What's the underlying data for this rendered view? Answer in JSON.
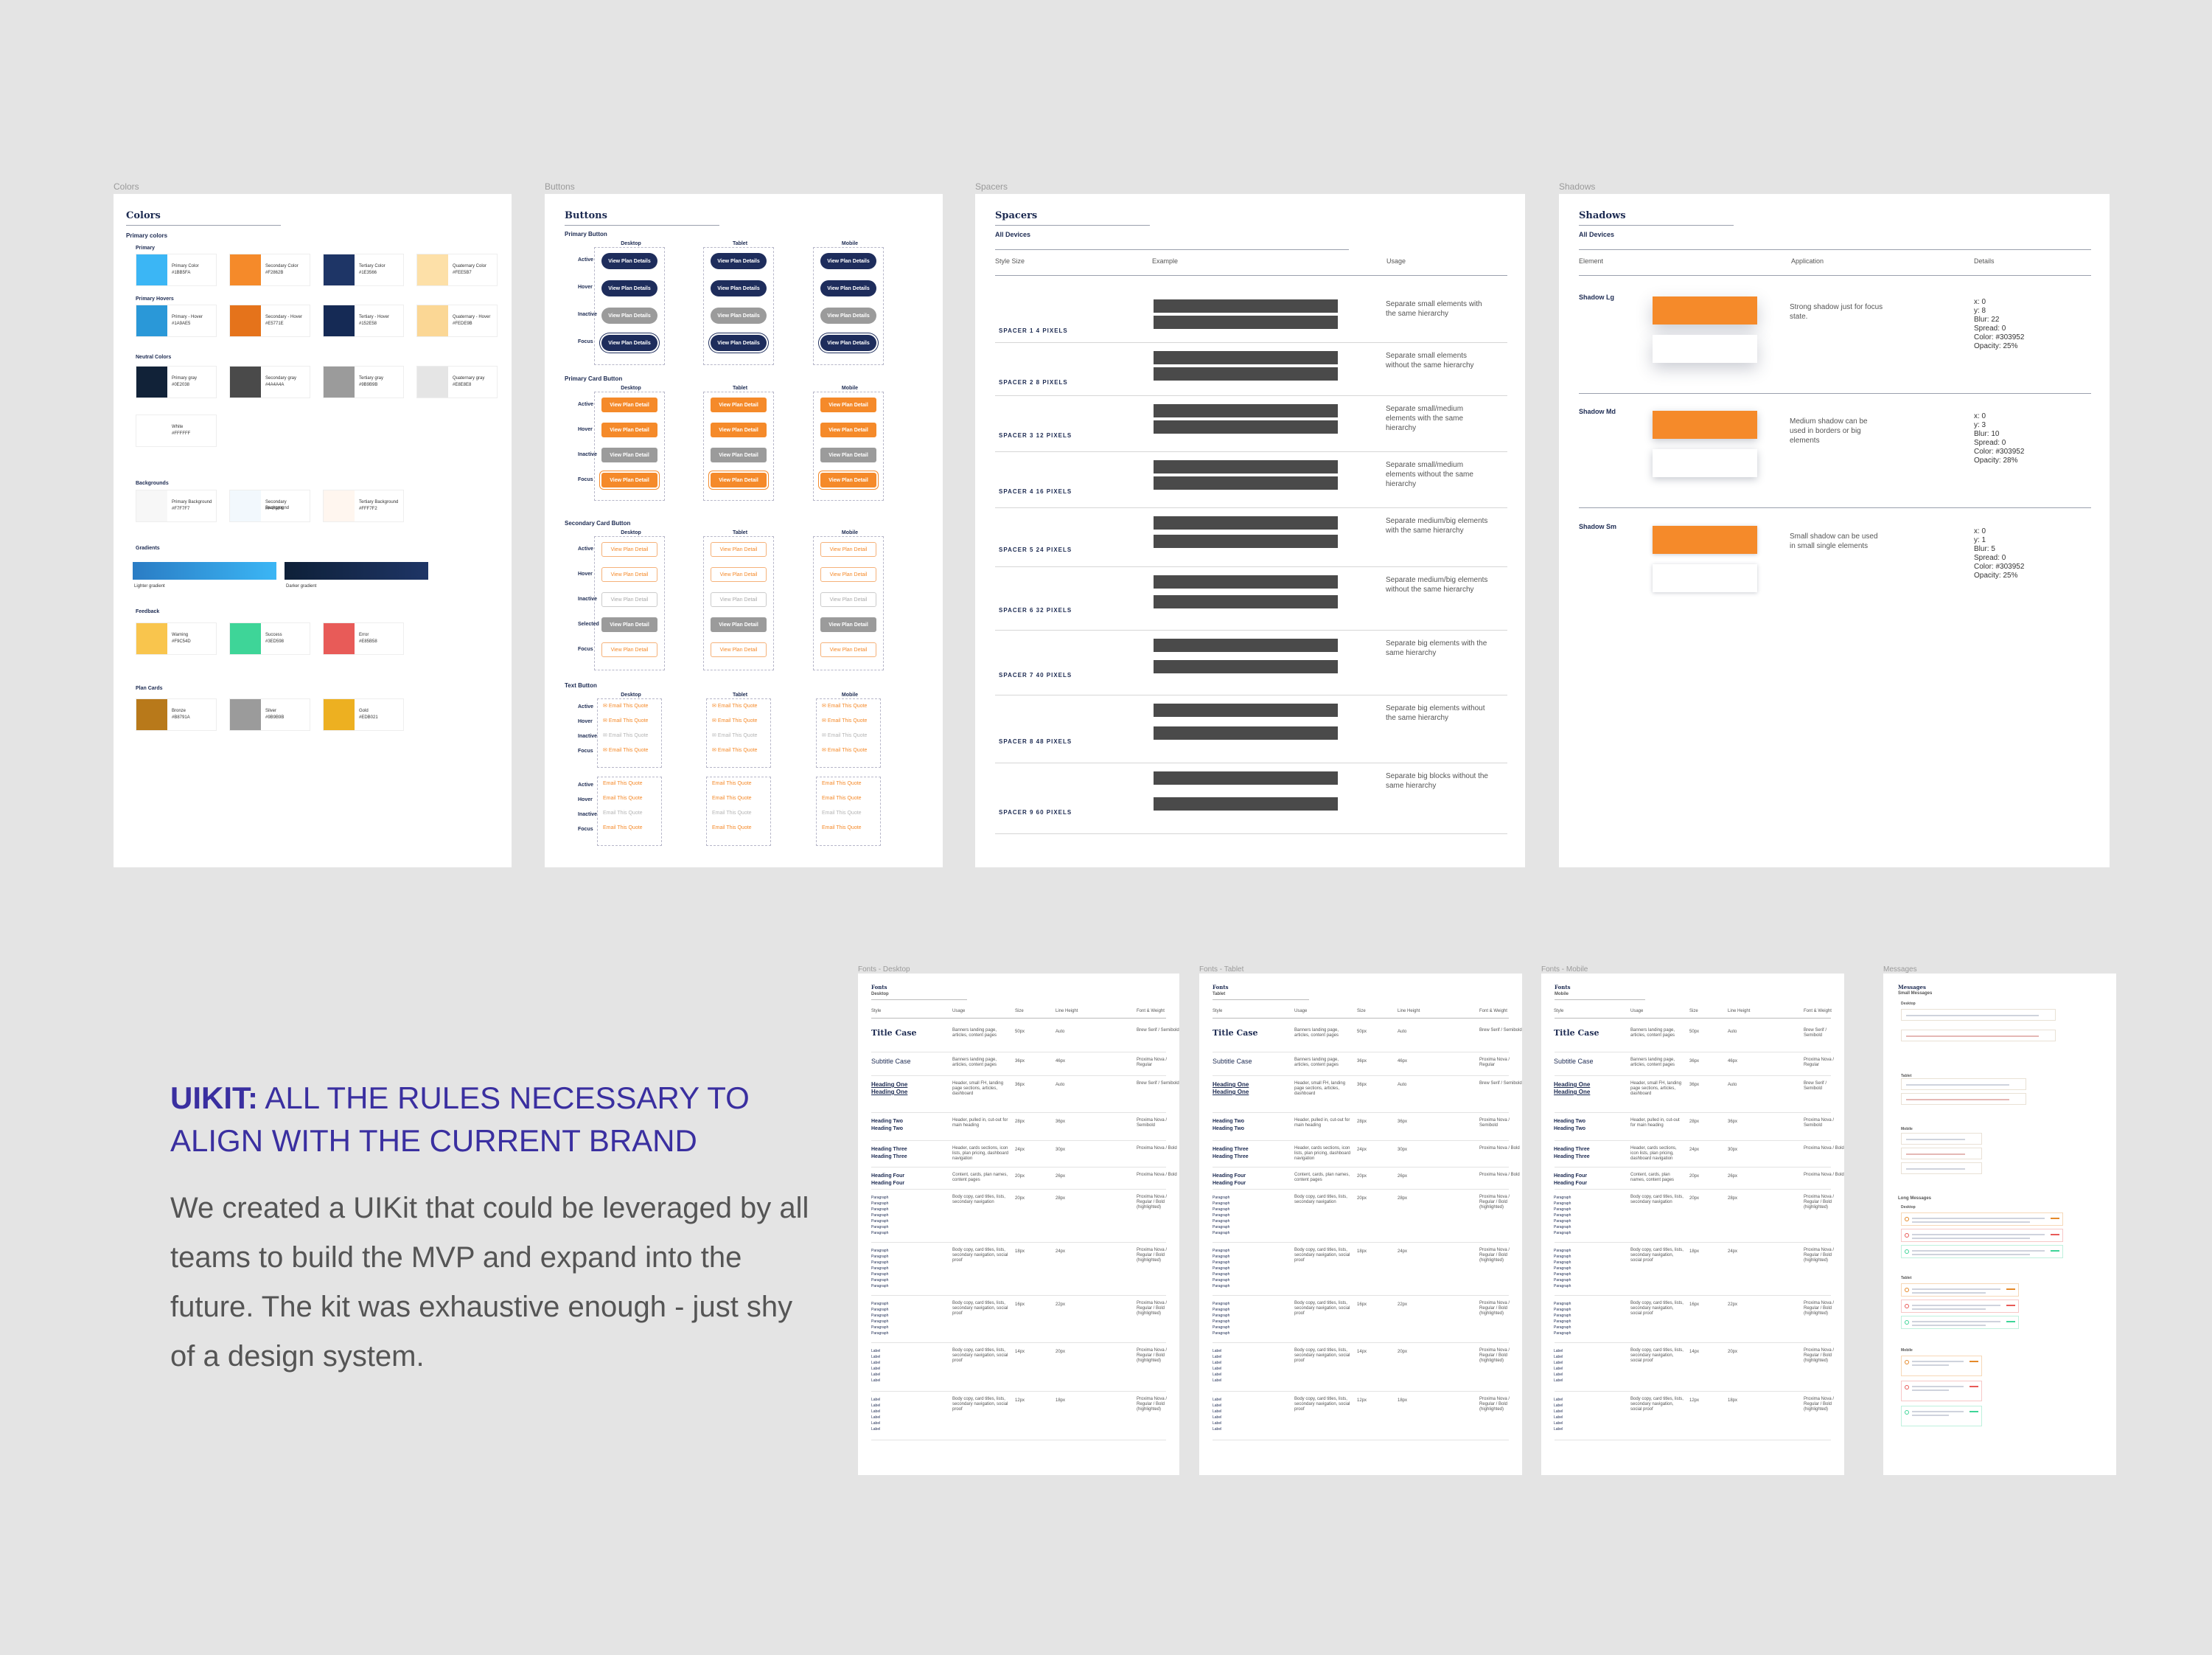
{
  "frames": {
    "colors": {
      "label": "Colors",
      "title": "Colors",
      "primary_colors_heading": "Primary colors",
      "primary_heading": "Primary",
      "primary_hovers_heading": "Primary Hovers",
      "neutral_heading": "Neutral Colors",
      "backgrounds_heading": "Backgrounds",
      "gradients_heading": "Gradients",
      "feedback_heading": "Feedback",
      "plan_cards_heading": "Plan Cards",
      "primary": [
        {
          "name": "Primary Color",
          "hex": "#1BB5FA",
          "color": "#3bb6f5"
        },
        {
          "name": "Secondary Color",
          "hex": "#F2862B",
          "color": "#f58a2a"
        },
        {
          "name": "Tertiary Color",
          "hex": "#1E3566",
          "color": "#1e3566"
        },
        {
          "name": "Quaternary Color",
          "hex": "#FEE5B7",
          "color": "#fde0a8"
        }
      ],
      "primary_hovers": [
        {
          "name": "Primary - Hover",
          "hex": "#1A9AE5",
          "color": "#2a98d8"
        },
        {
          "name": "Secondary - Hover",
          "hex": "#E5771E",
          "color": "#e5731b"
        },
        {
          "name": "Tertiary - Hover",
          "hex": "#152E58",
          "color": "#152a55"
        },
        {
          "name": "Quaternary - Hover",
          "hex": "#FEDE9B",
          "color": "#fbd795"
        }
      ],
      "neutral": [
        {
          "name": "Primary gray",
          "hex": "#0E2038",
          "color": "#112238"
        },
        {
          "name": "Secondary gray",
          "hex": "#4A4A4A",
          "color": "#4a4a4a"
        },
        {
          "name": "Tertiary gray",
          "hex": "#9B9B9B",
          "color": "#9b9b9b"
        },
        {
          "name": "Quaternary gray",
          "hex": "#E8E8E8",
          "color": "#e5e5e5"
        },
        {
          "name": "White",
          "hex": "#FFFFFF",
          "color": "#ffffff"
        }
      ],
      "backgrounds": [
        {
          "name": "Primary Background",
          "hex": "#F7F7F7",
          "color": "#f7f7f7"
        },
        {
          "name": "Secondary Background",
          "hex": "#F4FAFE",
          "color": "#f2f8fd"
        },
        {
          "name": "Tertiary Background",
          "hex": "#FFF7F2",
          "color": "#fff6ef"
        }
      ],
      "gradients": [
        {
          "name": "Lighter gradient",
          "from": "#2a7cc4",
          "to": "#3bb6f5"
        },
        {
          "name": "Darker gradient",
          "from": "#0e2038",
          "to": "#1e3566"
        }
      ],
      "feedback": [
        {
          "name": "Warning",
          "hex": "#F9C54D",
          "color": "#f9c54d"
        },
        {
          "name": "Success",
          "hex": "#3ED598",
          "color": "#3ed598"
        },
        {
          "name": "Error",
          "hex": "#E85B58",
          "color": "#e85b58"
        }
      ],
      "plan_cards": [
        {
          "name": "Bronze",
          "hex": "#B8791A",
          "color": "#b8791a"
        },
        {
          "name": "Silver",
          "hex": "#9B9B9B",
          "color": "#9b9b9b"
        },
        {
          "name": "Gold",
          "hex": "#EDB021",
          "color": "#edb021"
        }
      ]
    },
    "buttons": {
      "label": "Buttons",
      "title": "Buttons",
      "devices": [
        "Desktop",
        "Tablet",
        "Mobile"
      ],
      "primary_button": {
        "heading": "Primary Button",
        "states": [
          "Active",
          "Hover",
          "Inactive",
          "Focus"
        ],
        "label": "View Plan Details"
      },
      "primary_card_button": {
        "heading": "Primary Card Button",
        "states": [
          "Active",
          "Hover",
          "Inactive",
          "Focus"
        ],
        "label": "View Plan Detail"
      },
      "secondary_card_button": {
        "heading": "Secondary Card Button",
        "states": [
          "Active",
          "Hover",
          "Inactive",
          "Selected",
          "Focus"
        ],
        "label": "View Plan Detail"
      },
      "text_button": {
        "heading": "Text Button",
        "states": [
          "Active",
          "Hover",
          "Inactive",
          "Focus"
        ],
        "label": "Email This Quote"
      },
      "colors": {
        "navy": "#1e2d5c",
        "gray": "#9b9b9b",
        "orange": "#f58a2a"
      }
    },
    "spacers": {
      "label": "Spacers",
      "title": "Spacers",
      "subtitle": "All Devices",
      "columns": [
        "Style Size",
        "Example",
        "Usage"
      ],
      "rows": [
        {
          "name": "SPACER 1  4 PIXELS",
          "usage": "Separate small elements with the same hierarchy",
          "gap": 4
        },
        {
          "name": "SPACER 2  8 PIXELS",
          "usage": "Separate small elements without the same hierarchy",
          "gap": 8
        },
        {
          "name": "SPACER 3  12 PIXELS",
          "usage": "Separate small/medium elements with the same hierarchy",
          "gap": 12
        },
        {
          "name": "SPACER 4  16 PIXELS",
          "usage": "Separate small/medium elements without the same hierarchy",
          "gap": 16
        },
        {
          "name": "SPACER 5  24 PIXELS",
          "usage": "Separate medium/big elements with the same hierarchy",
          "gap": 24
        },
        {
          "name": "SPACER 6  32 PIXELS",
          "usage": "Separate medium/big elements without the same hierarchy",
          "gap": 32
        },
        {
          "name": "SPACER 7  40 PIXELS",
          "usage": "Separate big elements with the same hierarchy",
          "gap": 40
        },
        {
          "name": "SPACER 8  48 PIXELS",
          "usage": "Separate big elements without the same hierarchy",
          "gap": 48
        },
        {
          "name": "SPACER 9  60 PIXELS",
          "usage": "Separate big blocks without the same hierarchy",
          "gap": 60
        }
      ]
    },
    "shadows": {
      "label": "Shadows",
      "title": "Shadows",
      "subtitle": "All Devices",
      "columns": [
        "Element",
        "Application",
        "Details"
      ],
      "rows": [
        {
          "name": "Shadow Lg",
          "application": "Strong shadow just for focus state.",
          "details": [
            "x: 0",
            "y: 8",
            "Blur: 22",
            "Spread: 0",
            "Color: #303952",
            "Opacity: 25%"
          ]
        },
        {
          "name": "Shadow Md",
          "application": "Medium shadow can be used in borders or big elements",
          "details": [
            "x: 0",
            "y: 3",
            "Blur: 10",
            "Spread: 0",
            "Color: #303952",
            "Opacity: 28%"
          ]
        },
        {
          "name": "Shadow Sm",
          "application": "Small shadow can be used in small single elements",
          "details": [
            "x: 0",
            "y: 1",
            "Blur: 5",
            "Spread: 0",
            "Color: #303952",
            "Opacity: 25%"
          ]
        }
      ],
      "swatch_color": "#f58a2a"
    },
    "fonts_desktop": {
      "label": "Fonts - Desktop",
      "title": "Fonts",
      "subtitle": "Desktop"
    },
    "fonts_tablet": {
      "label": "Fonts - Tablet",
      "title": "Fonts",
      "subtitle": "Tablet"
    },
    "fonts_mobile": {
      "label": "Fonts - Mobile",
      "title": "Fonts",
      "subtitle": "Mobile"
    },
    "messages": {
      "label": "Messages",
      "title": "Messages",
      "subtitle": "Small Messages",
      "long_heading": "Long Messages",
      "devices": [
        "Desktop",
        "Tablet",
        "Mobile"
      ]
    }
  },
  "fonts_table": {
    "columns": [
      "Style",
      "Usage",
      "Size",
      "Line Height",
      "Font & Weight"
    ],
    "rows": [
      {
        "style": "Title Case",
        "usage": "Banners landing page, articles, content pages",
        "size": "50px",
        "lh": "Auto",
        "font": "Brew Serif / Semibold"
      },
      {
        "style": "Subtitle Case",
        "usage": "Banners landing page, articles, content pages",
        "size": "36px",
        "lh": "46px",
        "font": "Proxima Nova / Regular"
      },
      {
        "style": "Heading One",
        "usage": "Header, small FH, landing page sections, articles, dashboard",
        "size": "36px",
        "lh": "Auto",
        "font": "Brew Serif / Semibold"
      },
      {
        "style": "Heading Two",
        "usage": "Header, pulled in, cut-out for main heading",
        "size": "28px",
        "lh": "36px",
        "font": "Proxima Nova / Semibold"
      },
      {
        "style": "Heading Three",
        "usage": "Header, cards sections, icon lists, plan pricing, dashboard navigation",
        "size": "24px",
        "lh": "30px",
        "font": "Proxima Nova / Bold"
      },
      {
        "style": "Heading Four",
        "usage": "Content, cards, plan names, content pages",
        "size": "20px",
        "lh": "26px",
        "font": "Proxima Nova / Bold"
      },
      {
        "style": "Paragraph",
        "usage": "Body copy, card titles, lists, secondary navigation",
        "size": "20px",
        "lh": "28px",
        "font": "Proxima Nova / Regular / Bold (highlighted)"
      },
      {
        "style": "Paragraph",
        "usage": "Body copy, card titles, lists, secondary navigation, social proof",
        "size": "18px",
        "lh": "24px",
        "font": "Proxima Nova / Regular / Bold (highlighted)"
      },
      {
        "style": "Paragraph",
        "usage": "Body copy, card titles, lists, secondary navigation, social proof",
        "size": "16px",
        "lh": "22px",
        "font": "Proxima Nova / Regular / Bold (highlighted)"
      },
      {
        "style": "Label",
        "usage": "Body copy, card titles, lists, secondary navigation, social proof",
        "size": "14px",
        "lh": "20px",
        "font": "Proxima Nova / Regular / Bold (highlighted)"
      },
      {
        "style": "Label",
        "usage": "Body copy, card titles, lists, secondary navigation, social proof",
        "size": "12px",
        "lh": "18px",
        "font": "Proxima Nova / Regular / Bold (highlighted)"
      }
    ]
  },
  "headline": {
    "bold": "UIKIT:",
    "rest": " ALL THE RULES NECESSARY TO ALIGN WITH THE CURRENT BRAND"
  },
  "description": "We created a UIKit that could be leveraged by all teams to build the MVP and expand into the future. The kit was exhaustive enough - just shy of a design system."
}
